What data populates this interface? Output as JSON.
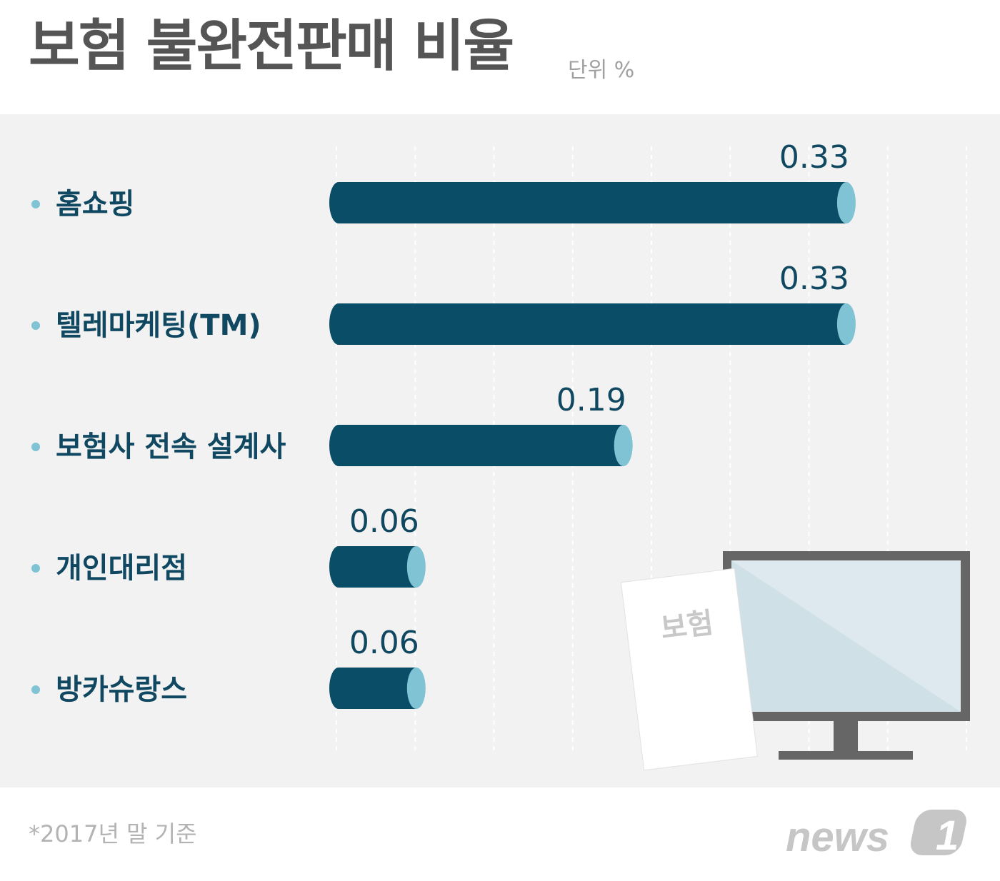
{
  "title": "보험 불완전판매 비율",
  "unit": "단위 %",
  "footnote": "*2017년 말 기준",
  "illustration": {
    "paper_label": "보험"
  },
  "logo": {
    "text": "news",
    "mark": "1"
  },
  "colors": {
    "bar": "#0a4d66",
    "bar_cap": "#7fc3d4",
    "bullet": "#7fc3d4",
    "label": "#0f4860",
    "panel": "#f2f2f2",
    "title": "#555555"
  },
  "chart_data": {
    "type": "bar",
    "orientation": "horizontal",
    "title": "보험 불완전판매 비율",
    "unit": "단위 %",
    "categories": [
      "홈쇼핑",
      "텔레마케팅(TM)",
      "보험사 전속 설계사",
      "개인대리점",
      "방카슈랑스"
    ],
    "values": [
      0.33,
      0.33,
      0.19,
      0.06,
      0.06
    ],
    "value_labels": [
      "0.33",
      "0.33",
      "0.19",
      "0.06",
      "0.06"
    ],
    "xlim": [
      0,
      0.4
    ],
    "grid": "vertical dashed",
    "legend": "none"
  }
}
